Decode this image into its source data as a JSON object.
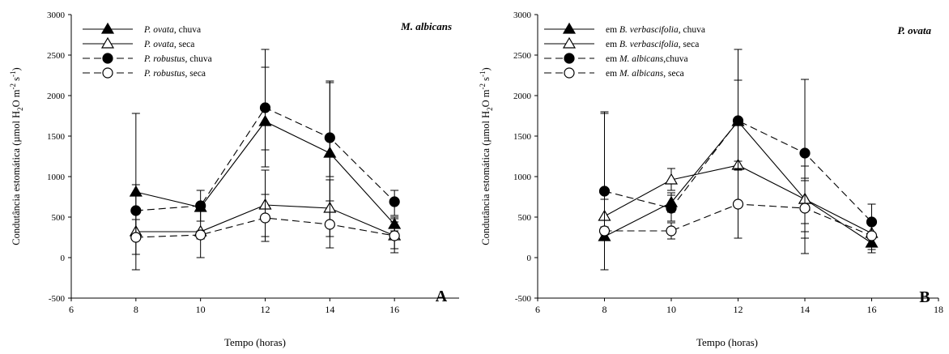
{
  "chart_data": [
    {
      "type": "line",
      "panel_label": "A",
      "corner_title": "M. albicans",
      "xlabel": "Tempo (horas)",
      "ylabel": "Condutância estomática (µmol H2O m-2 s-1)",
      "xlim": [
        6,
        18
      ],
      "ylim": [
        -500,
        3000
      ],
      "xticks": [
        6,
        8,
        10,
        12,
        14,
        16
      ],
      "yticks": [
        -500,
        0,
        500,
        1000,
        1500,
        2000,
        2500,
        3000
      ],
      "x": [
        8,
        10,
        12,
        14,
        16
      ],
      "legend_position": "top-left",
      "series": [
        {
          "legend_italic": "P. ovata",
          "legend_suffix": ", chuva",
          "marker": "triangle-filled",
          "dash": "solid",
          "values": [
            810,
            620,
            1680,
            1290,
            410
          ],
          "err_low": [
            800,
            590,
            1330,
            1000,
            330
          ],
          "err_high": [
            1780,
            650,
            2350,
            2160,
            500
          ]
        },
        {
          "legend_italic": "P. ovata",
          "legend_suffix": ", seca",
          "marker": "triangle-open",
          "dash": "solid",
          "values": [
            320,
            320,
            650,
            610,
            270
          ],
          "err_low": [
            -150,
            0,
            260,
            260,
            110
          ],
          "err_high": [
            790,
            620,
            1080,
            960,
            440
          ]
        },
        {
          "legend_italic": "P. robustus",
          "legend_suffix": ", chuva",
          "marker": "circle-filled",
          "dash": "dashed",
          "values": [
            580,
            640,
            1850,
            1480,
            690
          ],
          "err_low": [
            260,
            450,
            1120,
            700,
            520
          ],
          "err_high": [
            900,
            830,
            2570,
            2180,
            830
          ]
        },
        {
          "legend_italic": "P. robustus",
          "legend_suffix": ", seca",
          "marker": "circle-open",
          "dash": "dashed",
          "values": [
            250,
            280,
            490,
            410,
            270
          ],
          "err_low": [
            40,
            230,
            200,
            120,
            60
          ],
          "err_high": [
            470,
            330,
            780,
            700,
            480
          ]
        }
      ]
    },
    {
      "type": "line",
      "panel_label": "B",
      "corner_title": "P. ovata",
      "xlabel": "Tempo (horas)",
      "ylabel": "Condutância estomática (µmol H2O m-2 s-1)",
      "xlim": [
        6,
        18
      ],
      "ylim": [
        -500,
        3000
      ],
      "xticks": [
        6,
        8,
        10,
        12,
        14,
        16,
        18
      ],
      "yticks": [
        -500,
        0,
        500,
        1000,
        1500,
        2000,
        2500,
        3000
      ],
      "x": [
        8,
        10,
        12,
        14,
        16
      ],
      "legend_position": "top-left",
      "series": [
        {
          "legend_prefix": "em ",
          "legend_italic": "B. verbascifolia",
          "legend_suffix": ", chuva",
          "marker": "triangle-filled",
          "dash": "solid",
          "values": [
            260,
            680,
            1680,
            720,
            180
          ],
          "err_low": [
            -150,
            560,
            240,
            320,
            60
          ],
          "err_high": [
            1780,
            800,
            2570,
            1130,
            300
          ]
        },
        {
          "legend_prefix": "em ",
          "legend_italic": "B. verbascifolia",
          "legend_suffix": ", seca",
          "marker": "triangle-open",
          "dash": "solid",
          "values": [
            510,
            960,
            1140,
            720,
            300
          ],
          "err_low": [
            300,
            830,
            1080,
            420,
            150
          ],
          "err_high": [
            720,
            1100,
            1190,
            950,
            450
          ]
        },
        {
          "legend_prefix": "em ",
          "legend_italic": "M. albicans",
          "legend_suffix": ",chuva",
          "marker": "circle-filled",
          "dash": "dashed",
          "values": [
            820,
            610,
            1690,
            1290,
            440
          ],
          "err_low": [
            300,
            450,
            1100,
            50,
            250
          ],
          "err_high": [
            1800,
            770,
            2190,
            2200,
            660
          ]
        },
        {
          "legend_prefix": "em ",
          "legend_italic": "M. albicans",
          "legend_suffix": ", seca",
          "marker": "circle-open",
          "dash": "dashed",
          "values": [
            330,
            330,
            660,
            610,
            270
          ],
          "err_low": [
            280,
            230,
            240,
            240,
            100
          ],
          "err_high": [
            380,
            430,
            1080,
            980,
            440
          ]
        }
      ]
    }
  ]
}
